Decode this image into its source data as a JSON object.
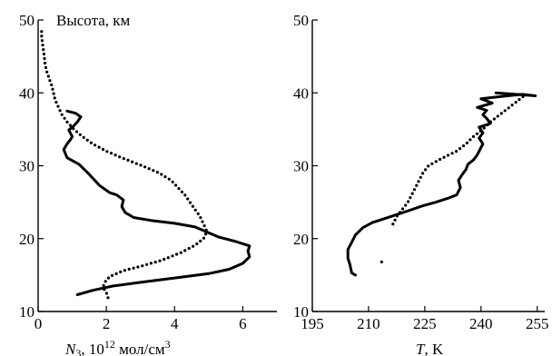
{
  "chart_data": [
    {
      "type": "line",
      "ylabel": "Высота, км",
      "xlabel": {
        "symbol": "N",
        "sub": "3",
        "rest": ", 10",
        "sup": "12",
        "unit": " мол/см",
        "unit_sup": "3"
      },
      "xlim": [
        0,
        7
      ],
      "ylim": [
        10,
        50
      ],
      "xticks": [
        0,
        2,
        4,
        6
      ],
      "yticks": [
        10,
        20,
        30,
        40,
        50
      ],
      "grid": false,
      "series": [
        {
          "style": "solid",
          "points": [
            [
              1.15,
              12.3
            ],
            [
              1.6,
              12.9
            ],
            [
              2.2,
              13.5
            ],
            [
              3.0,
              14.0
            ],
            [
              4.0,
              14.6
            ],
            [
              5.0,
              15.2
            ],
            [
              5.6,
              15.8
            ],
            [
              6.0,
              16.6
            ],
            [
              6.2,
              17.5
            ],
            [
              6.15,
              18.3
            ],
            [
              6.2,
              19.0
            ],
            [
              5.8,
              19.6
            ],
            [
              5.3,
              20.2
            ],
            [
              4.9,
              21.0
            ],
            [
              4.6,
              21.6
            ],
            [
              4.0,
              22.1
            ],
            [
              3.3,
              22.5
            ],
            [
              2.8,
              22.9
            ],
            [
              2.55,
              23.6
            ],
            [
              2.45,
              24.4
            ],
            [
              2.5,
              25.3
            ],
            [
              2.3,
              26.0
            ],
            [
              2.1,
              26.3
            ],
            [
              1.8,
              27.3
            ],
            [
              1.5,
              28.8
            ],
            [
              1.2,
              30.2
            ],
            [
              0.85,
              31.1
            ],
            [
              0.75,
              32.2
            ],
            [
              0.85,
              33.0
            ],
            [
              0.95,
              33.6
            ],
            [
              1.0,
              34.0
            ],
            [
              0.9,
              34.9
            ],
            [
              1.05,
              35.5
            ],
            [
              1.15,
              36.0
            ],
            [
              1.25,
              36.7
            ],
            [
              1.1,
              37.2
            ],
            [
              0.85,
              37.5
            ]
          ]
        },
        {
          "style": "dotted",
          "points": [
            [
              2.05,
              11.9
            ],
            [
              2.0,
              12.6
            ],
            [
              1.9,
              13.3
            ],
            [
              1.95,
              14.0
            ],
            [
              2.1,
              14.8
            ],
            [
              2.5,
              15.6
            ],
            [
              3.0,
              16.2
            ],
            [
              3.6,
              17.0
            ],
            [
              4.2,
              18.1
            ],
            [
              4.6,
              19.1
            ],
            [
              4.85,
              20.0
            ],
            [
              4.95,
              21.0
            ],
            [
              4.85,
              22.0
            ],
            [
              4.75,
              23.0
            ],
            [
              4.6,
              24.0
            ],
            [
              4.45,
              25.0
            ],
            [
              4.3,
              26.0
            ],
            [
              4.1,
              27.0
            ],
            [
              3.9,
              28.0
            ],
            [
              3.55,
              29.0
            ],
            [
              3.05,
              30.0
            ],
            [
              2.5,
              31.0
            ],
            [
              2.0,
              32.0
            ],
            [
              1.6,
              33.0
            ],
            [
              1.3,
              34.0
            ],
            [
              1.05,
              35.0
            ],
            [
              0.85,
              36.0
            ],
            [
              0.7,
              37.0
            ],
            [
              0.6,
              38.0
            ],
            [
              0.5,
              39.0
            ],
            [
              0.45,
              40.0
            ],
            [
              0.4,
              41.0
            ],
            [
              0.32,
              42.0
            ],
            [
              0.25,
              43.0
            ],
            [
              0.2,
              44.0
            ],
            [
              0.18,
              45.0
            ],
            [
              0.15,
              46.0
            ],
            [
              0.12,
              47.0
            ],
            [
              0.1,
              48.0
            ],
            [
              0.1,
              48.8
            ]
          ]
        }
      ]
    },
    {
      "type": "line",
      "xlabel": {
        "symbol": "T",
        "rest": ", K"
      },
      "xlim": [
        195,
        257
      ],
      "ylim": [
        10,
        50
      ],
      "xticks": [
        195,
        210,
        225,
        240,
        255
      ],
      "yticks": [
        10,
        20,
        30,
        40,
        50
      ],
      "grid": false,
      "series": [
        {
          "style": "solid",
          "points": [
            [
              206.5,
              15.0
            ],
            [
              205.5,
              15.3
            ],
            [
              205.0,
              16.5
            ],
            [
              204.5,
              17.3
            ],
            [
              204.5,
              18.5
            ],
            [
              205.5,
              19.5
            ],
            [
              206.5,
              20.5
            ],
            [
              208.5,
              21.5
            ],
            [
              211.0,
              22.2
            ],
            [
              214.0,
              22.7
            ],
            [
              217.5,
              23.3
            ],
            [
              221.0,
              23.9
            ],
            [
              224.5,
              24.5
            ],
            [
              228.0,
              25.0
            ],
            [
              231.0,
              25.5
            ],
            [
              233.5,
              26.0
            ],
            [
              234.5,
              27.0
            ],
            [
              234.0,
              28.0
            ],
            [
              235.0,
              28.8
            ],
            [
              236.0,
              29.5
            ],
            [
              236.5,
              30.2
            ],
            [
              238.0,
              30.8
            ],
            [
              239.0,
              31.5
            ],
            [
              240.0,
              32.5
            ],
            [
              240.5,
              33.0
            ],
            [
              239.5,
              33.8
            ],
            [
              240.5,
              34.5
            ],
            [
              239.5,
              35.3
            ],
            [
              242.5,
              35.8
            ],
            [
              241.5,
              36.5
            ],
            [
              240.5,
              37.0
            ],
            [
              241.5,
              37.6
            ],
            [
              239.0,
              38.0
            ],
            [
              243.0,
              38.6
            ],
            [
              240.0,
              39.2
            ],
            [
              247.0,
              39.6
            ],
            [
              251.0,
              39.8
            ],
            [
              254.5,
              39.6
            ],
            [
              244.0,
              40.0
            ]
          ]
        },
        {
          "style": "dotted",
          "points": [
            [
              216.5,
              22.0
            ],
            [
              217.5,
              23.0
            ],
            [
              219.0,
              24.0
            ],
            [
              220.5,
              25.0
            ],
            [
              221.5,
              26.0
            ],
            [
              222.5,
              27.0
            ],
            [
              223.5,
              28.0
            ],
            [
              224.5,
              29.0
            ],
            [
              226.0,
              30.0
            ],
            [
              229.5,
              31.0
            ],
            [
              233.5,
              32.0
            ],
            [
              236.0,
              33.0
            ],
            [
              238.0,
              34.0
            ],
            [
              240.5,
              35.0
            ],
            [
              242.5,
              36.0
            ],
            [
              245.0,
              37.0
            ],
            [
              247.5,
              38.0
            ],
            [
              250.0,
              39.0
            ],
            [
              251.5,
              39.6
            ]
          ]
        },
        {
          "style": "dotted",
          "points": [
            [
              213.5,
              16.8
            ],
            [
              213.0,
              17.2
            ]
          ]
        }
      ]
    }
  ]
}
